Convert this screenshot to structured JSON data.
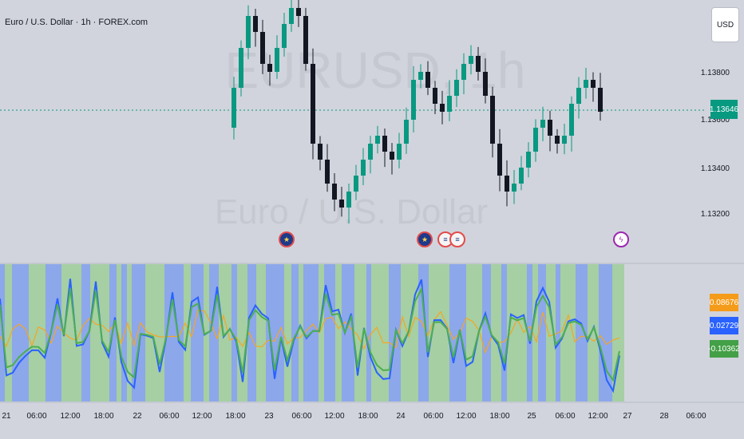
{
  "header": {
    "symbol_title": "Euro / U.S. Dollar · 1h · FOREX.com"
  },
  "currency_button": {
    "label": "USD"
  },
  "watermark": {
    "symbol": "EURUSD, 1h",
    "name": "Euro / U.S. Dollar"
  },
  "price_axis": {
    "labels": [
      "1.13800",
      "1.13600",
      "1.13400",
      "1.13200"
    ],
    "last_price": "1.13646"
  },
  "indicator_values": {
    "orange": "0.08676",
    "blue": "0.02729",
    "green": "-0.10362"
  },
  "time_axis": [
    "21",
    "06:00",
    "12:00",
    "18:00",
    "22",
    "06:00",
    "12:00",
    "18:00",
    "23",
    "06:00",
    "12:00",
    "18:00",
    "24",
    "06:00",
    "12:00",
    "18:00",
    "25",
    "06:00",
    "12:00",
    "27",
    "28",
    "06:00"
  ],
  "events": [
    {
      "type": "eu-icon"
    },
    {
      "type": "eu-icon"
    },
    {
      "type": "us-flag-icon"
    },
    {
      "type": "us-flag-icon"
    },
    {
      "type": "lightning-icon"
    }
  ],
  "colors": {
    "up": "#089981",
    "down": "#131722",
    "bg": "#d1d4dc",
    "blue_zone": "#8ca7ea",
    "green_zone": "#a6cfa3",
    "blue_line": "#2962ff",
    "green_line": "#4caf50",
    "orange_line": "#f5a623"
  }
}
